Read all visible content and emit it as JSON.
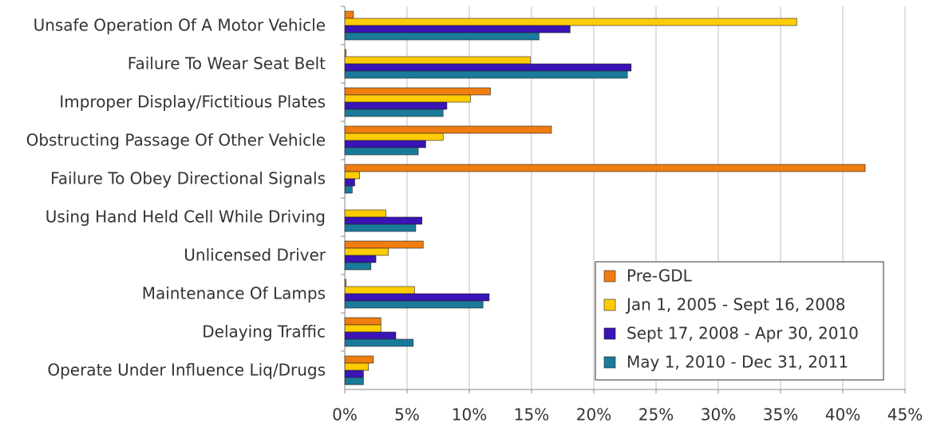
{
  "chart_data": {
    "type": "hbar",
    "categories": [
      "Unsafe Operation Of A Motor Vehicle",
      "Failure To Wear Seat Belt",
      "Improper Display/Fictitious Plates",
      "Obstructing Passage Of Other Vehicle",
      "Failure To Obey Directional Signals",
      "Using Hand Held Cell While Driving",
      "Unlicensed Driver",
      "Maintenance Of Lamps",
      "Delaying Traffic",
      "Operate Under Influence Liq/Drugs"
    ],
    "series": [
      {
        "name": "Pre-GDL",
        "color": "#f07d0f",
        "values": [
          0.7,
          0.1,
          11.7,
          16.6,
          41.8,
          0,
          6.3,
          0.1,
          2.9,
          2.3
        ]
      },
      {
        "name": "Jan 1, 2005 - Sept 16, 2008",
        "color": "#ffcc00",
        "values": [
          36.3,
          14.9,
          10.1,
          7.9,
          1.2,
          3.3,
          3.5,
          5.6,
          2.9,
          1.9
        ]
      },
      {
        "name": "Sept 17, 2008 - Apr 30, 2010",
        "color": "#3a14b4",
        "values": [
          18.1,
          23.0,
          8.2,
          6.5,
          0.8,
          6.2,
          2.5,
          11.6,
          4.1,
          1.5
        ]
      },
      {
        "name": "May 1, 2010 - Dec 31, 2011",
        "color": "#1a7a99",
        "values": [
          15.6,
          22.7,
          7.9,
          5.9,
          0.6,
          5.7,
          2.1,
          11.1,
          5.5,
          1.5
        ]
      }
    ],
    "xlim": [
      0,
      45
    ],
    "xticks": [
      {
        "value": 0,
        "label": "0%"
      },
      {
        "value": 5,
        "label": "5%"
      },
      {
        "value": 10,
        "label": "10%"
      },
      {
        "value": 15,
        "label": "15%"
      },
      {
        "value": 20,
        "label": "20%"
      },
      {
        "value": 25,
        "label": "25%"
      },
      {
        "value": 30,
        "label": "30%"
      },
      {
        "value": 35,
        "label": "35%"
      },
      {
        "value": 40,
        "label": "40%"
      },
      {
        "value": 45,
        "label": "45%"
      }
    ],
    "grid": true,
    "legend": "lower right"
  }
}
